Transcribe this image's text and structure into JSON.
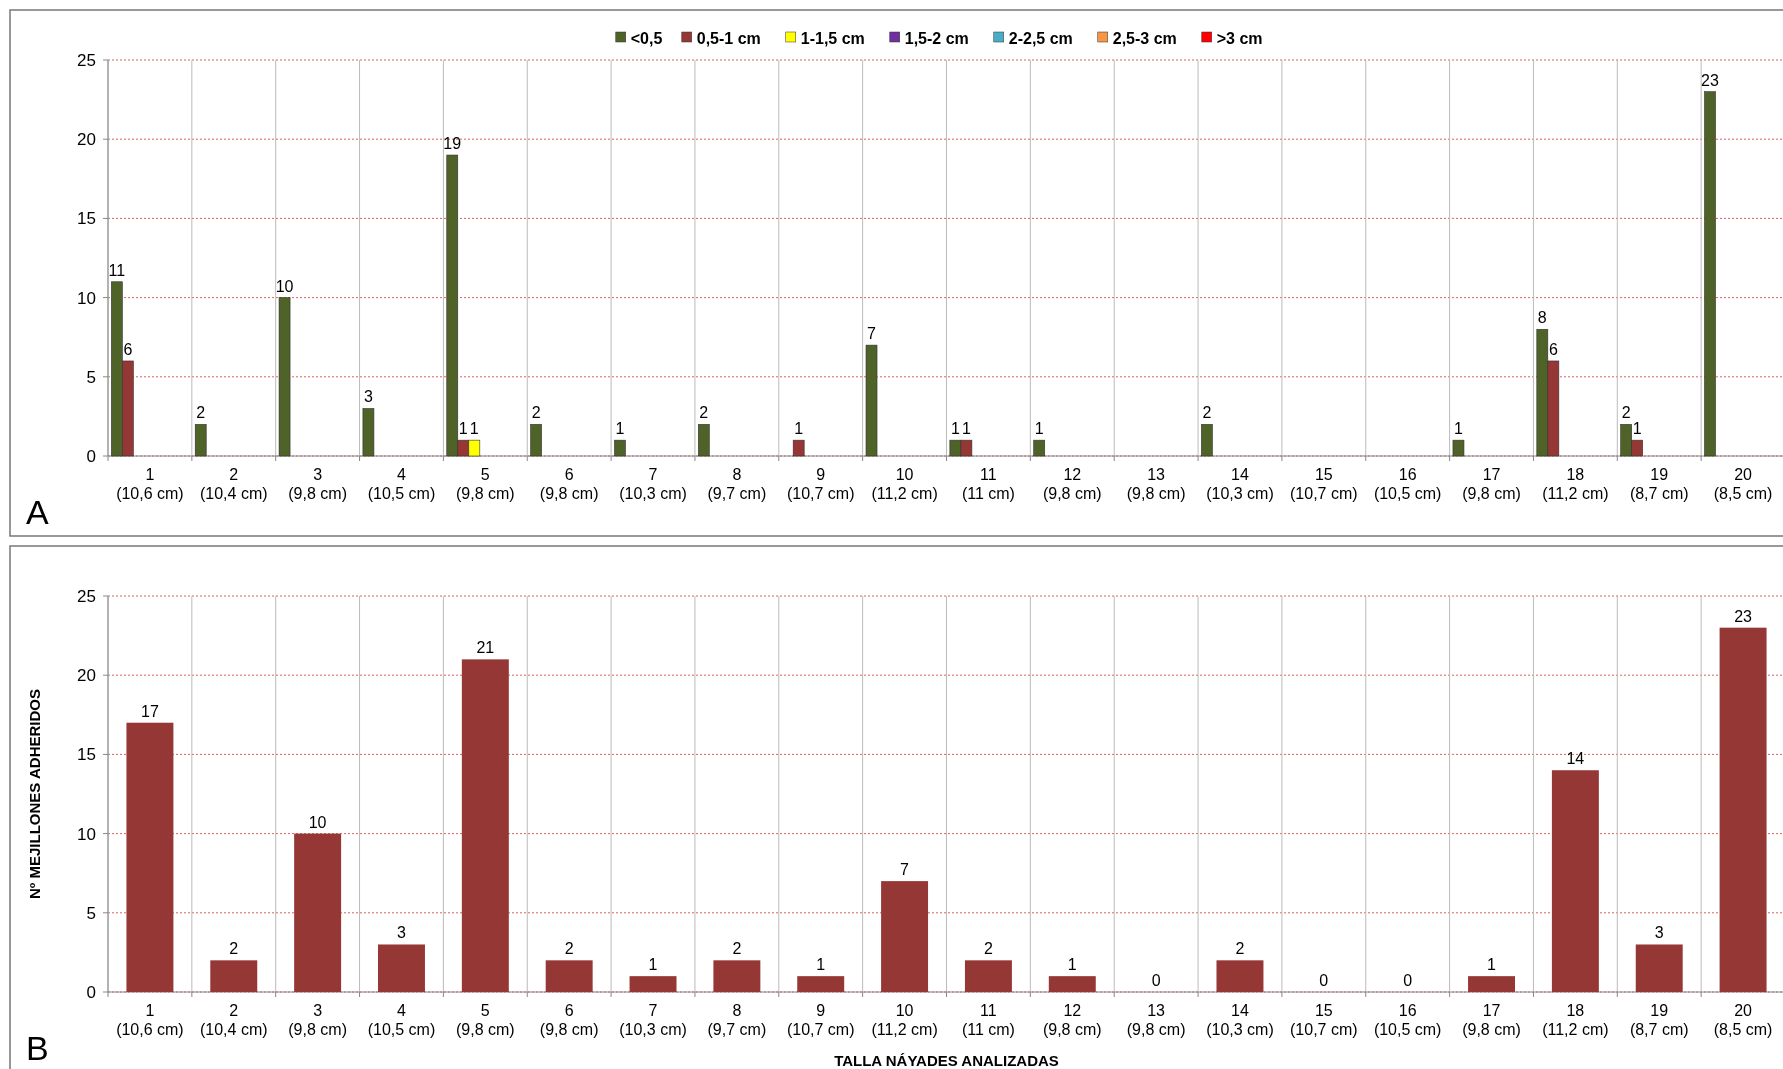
{
  "chart_data": [
    {
      "type": "bar",
      "categories": [
        "1\n(10,6 cm)",
        "2\n(10,4 cm)",
        "3\n(9,8 cm)",
        "4\n(10,5 cm)",
        "5\n(9,8 cm)",
        "6\n(9,8 cm)",
        "7\n(10,3 cm)",
        "8\n(9,7 cm)",
        "9\n(10,7 cm)",
        "10\n(11,2 cm)",
        "11\n(11 cm)",
        "12\n(9,8 cm)",
        "13\n(9,8 cm)",
        "14\n(10,3 cm)",
        "15\n(10,7 cm)",
        "16\n(10,5 cm)",
        "17\n(9,8 cm)",
        "18\n(11,2 cm)",
        "19\n(8,7 cm)",
        "20\n(8,5 cm)"
      ],
      "series": [
        {
          "name": "<0,5",
          "color": "#4f6228",
          "values": [
            11,
            2,
            10,
            3,
            19,
            2,
            1,
            2,
            null,
            7,
            1,
            1,
            null,
            2,
            null,
            null,
            1,
            8,
            2,
            23
          ]
        },
        {
          "name": "0,5-1 cm",
          "color": "#953735",
          "values": [
            6,
            null,
            null,
            null,
            1,
            null,
            null,
            null,
            1,
            null,
            1,
            null,
            null,
            null,
            null,
            null,
            null,
            6,
            1,
            null
          ]
        },
        {
          "name": "1-1,5 cm",
          "color": "#ffff00",
          "values": [
            null,
            null,
            null,
            null,
            1,
            null,
            null,
            null,
            null,
            null,
            null,
            null,
            null,
            null,
            null,
            null,
            null,
            null,
            null,
            null
          ]
        },
        {
          "name": "1,5-2 cm",
          "color": "#7030a0",
          "values": [
            null,
            null,
            null,
            null,
            null,
            null,
            null,
            null,
            null,
            null,
            null,
            null,
            null,
            null,
            null,
            null,
            null,
            null,
            null,
            null
          ]
        },
        {
          "name": "2-2,5 cm",
          "color": "#4bacc6",
          "values": [
            null,
            null,
            null,
            null,
            null,
            null,
            null,
            null,
            null,
            null,
            null,
            null,
            null,
            null,
            null,
            null,
            null,
            null,
            null,
            null
          ]
        },
        {
          "name": "2,5-3 cm",
          "color": "#f79646",
          "values": [
            null,
            null,
            null,
            null,
            null,
            null,
            null,
            null,
            null,
            null,
            null,
            null,
            null,
            null,
            null,
            null,
            null,
            null,
            null,
            null
          ]
        },
        {
          "name": ">3 cm",
          "color": "#ff0000",
          "values": [
            null,
            null,
            null,
            null,
            null,
            null,
            null,
            null,
            null,
            null,
            null,
            null,
            null,
            null,
            null,
            null,
            null,
            null,
            null,
            null
          ]
        }
      ],
      "ylim": [
        0,
        25
      ],
      "yticks": [
        0,
        5,
        10,
        15,
        20,
        25
      ],
      "grid": true,
      "legend": "top",
      "data_labels": true,
      "annotations": [
        "A"
      ]
    },
    {
      "type": "bar",
      "categories": [
        "1\n(10,6 cm)",
        "2\n(10,4 cm)",
        "3\n(9,8 cm)",
        "4\n(10,5 cm)",
        "5\n(9,8 cm)",
        "6\n(9,8 cm)",
        "7\n(10,3 cm)",
        "8\n(9,7 cm)",
        "9\n(10,7 cm)",
        "10\n(11,2 cm)",
        "11\n(11 cm)",
        "12\n(9,8 cm)",
        "13\n(9,8 cm)",
        "14\n(10,3 cm)",
        "15\n(10,7 cm)",
        "16\n(10,5 cm)",
        "17\n(9,8 cm)",
        "18\n(11,2 cm)",
        "19\n(8,7 cm)",
        "20\n(8,5 cm)"
      ],
      "series": [
        {
          "color": "#953735",
          "values": [
            17,
            2,
            10,
            3,
            21,
            2,
            1,
            2,
            1,
            7,
            2,
            1,
            0,
            2,
            0,
            0,
            1,
            14,
            3,
            23
          ]
        }
      ],
      "ylim": [
        0,
        25
      ],
      "yticks": [
        0,
        5,
        10,
        15,
        20,
        25
      ],
      "grid": true,
      "data_labels": true,
      "xlabel": "TALLA NÁYADES ANALIZADAS",
      "ylabel": "Nº MEJILLONES ADHERIDOS",
      "annotations": [
        "B"
      ]
    }
  ]
}
